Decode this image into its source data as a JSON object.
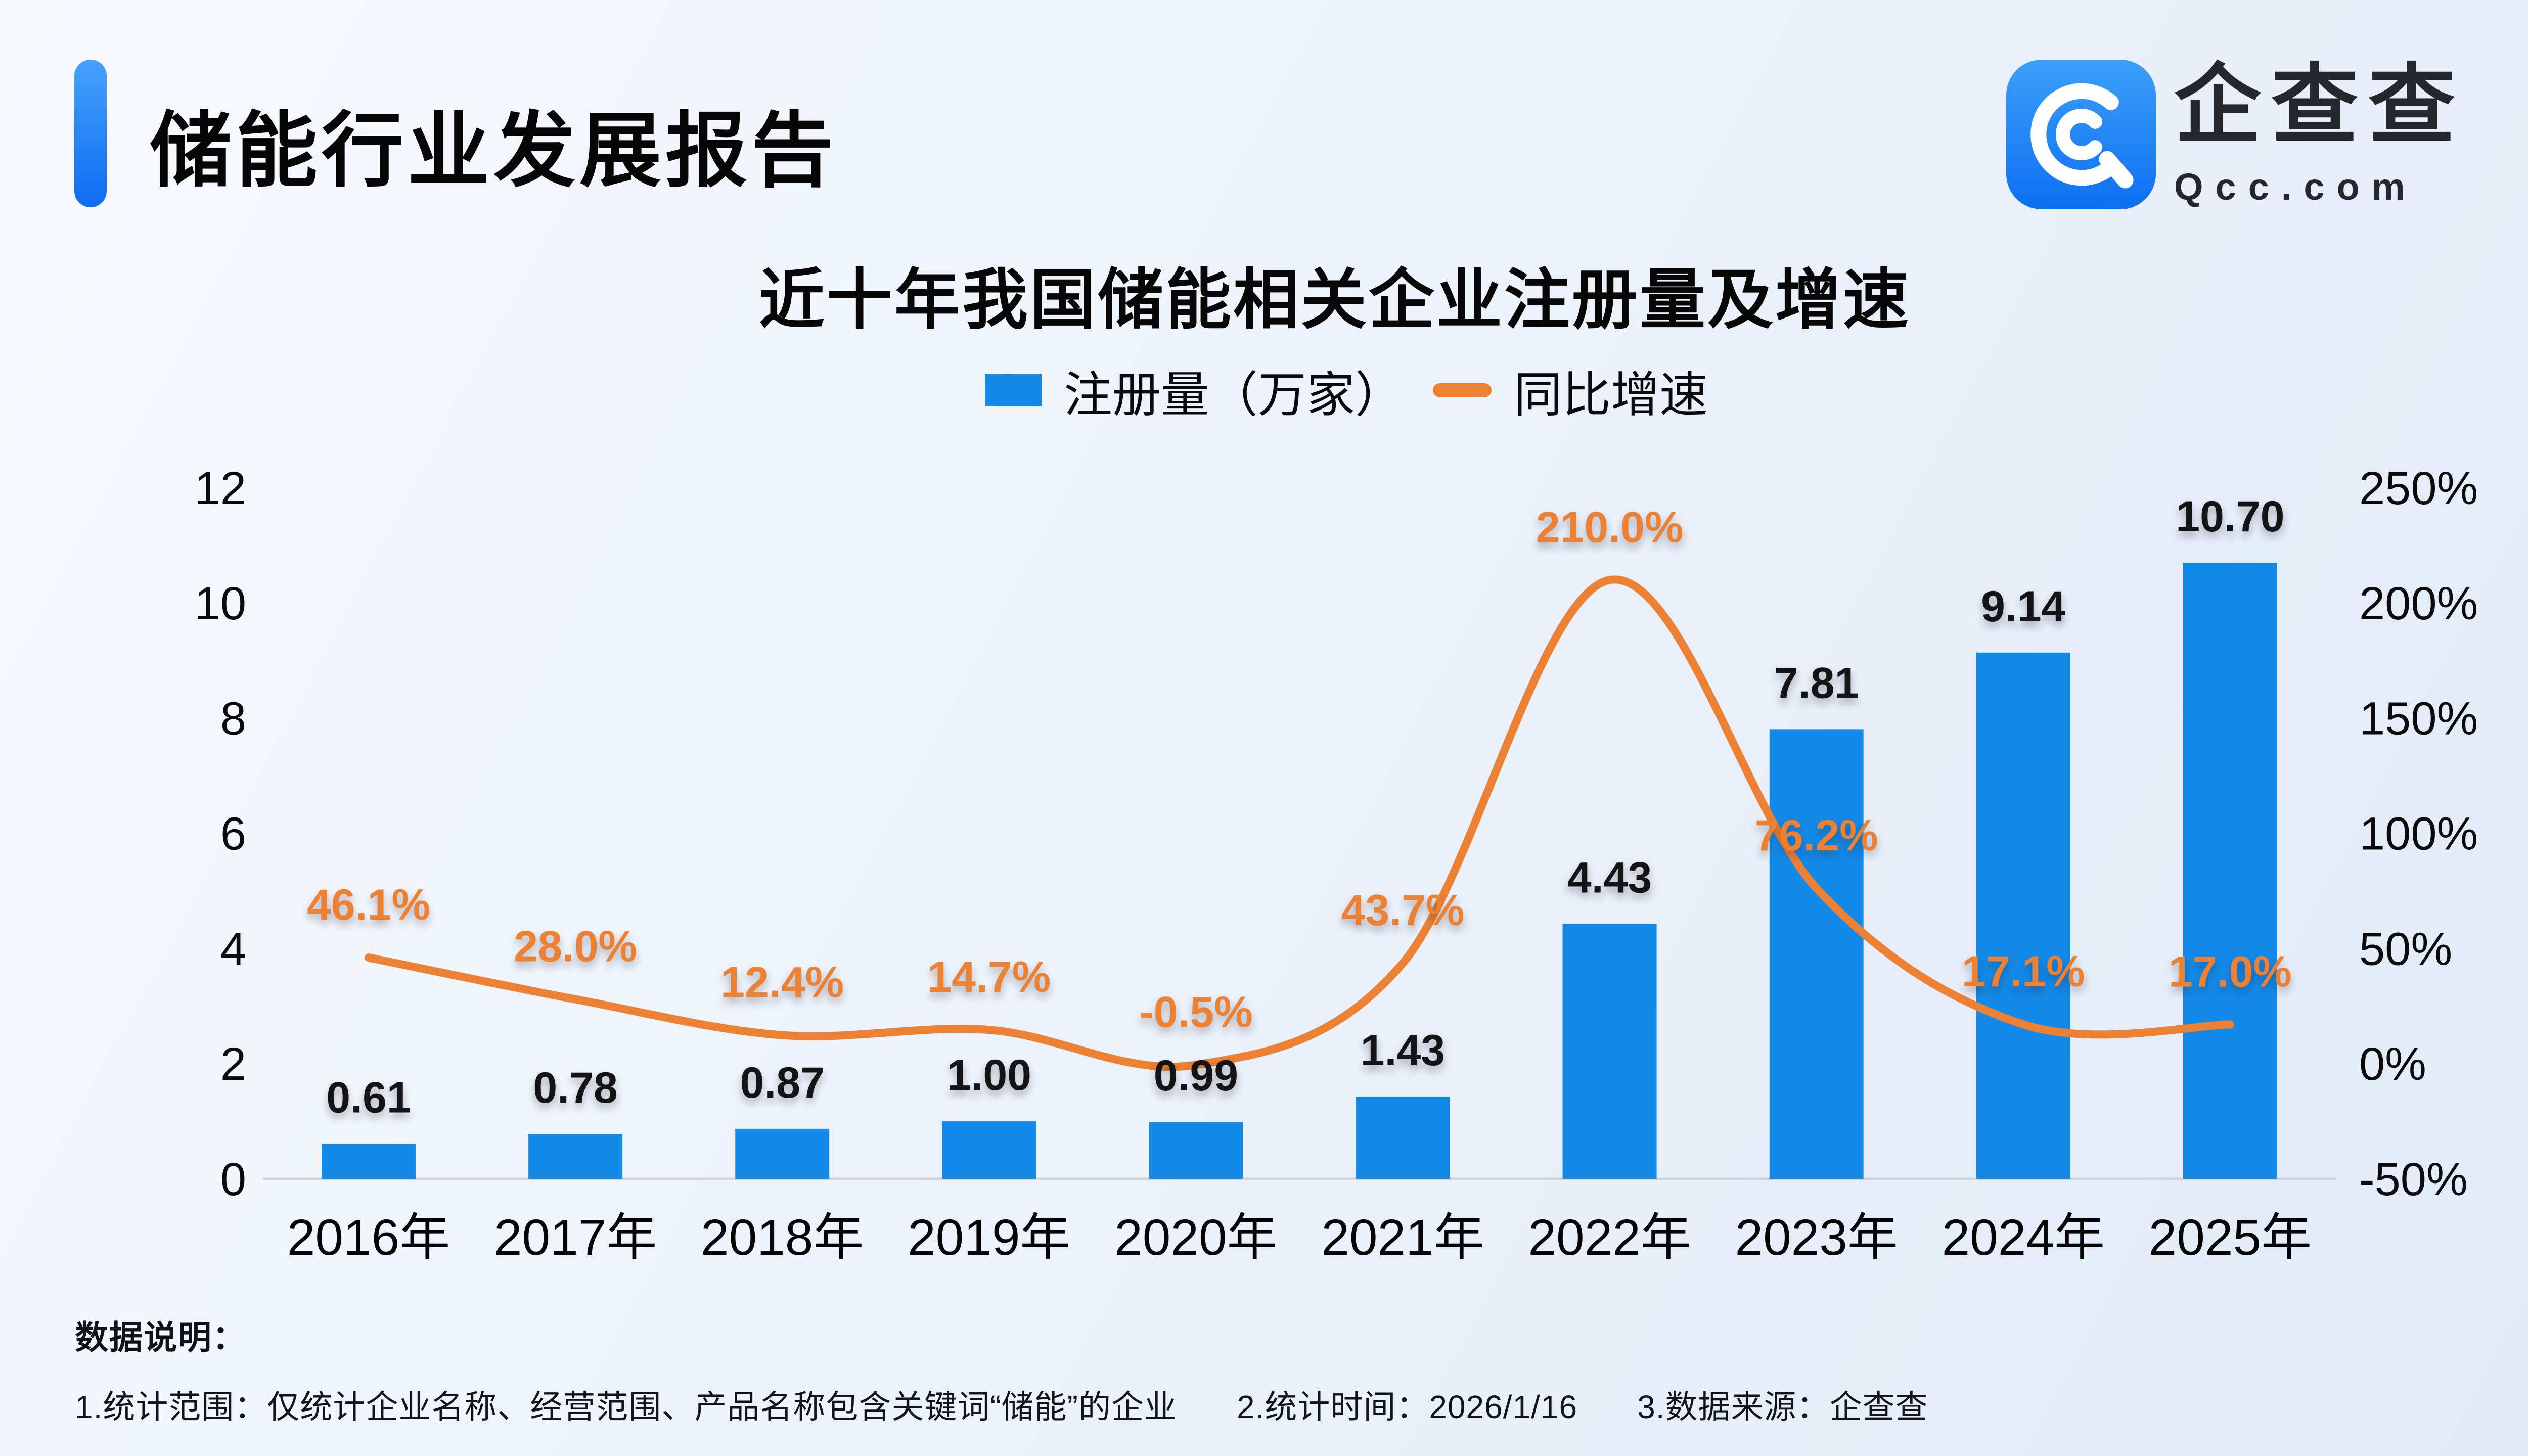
{
  "header": {
    "title": "储能行业发展报告"
  },
  "logo": {
    "brand": "企查查",
    "domain": "Qcc.com"
  },
  "chart": {
    "title": "近十年我国储能相关企业注册量及增速"
  },
  "chart_data": {
    "type": "bar+line",
    "title": "近十年我国储能相关企业注册量及增速",
    "categories": [
      "2016年",
      "2017年",
      "2018年",
      "2019年",
      "2020年",
      "2021年",
      "2022年",
      "2023年",
      "2024年",
      "2025年"
    ],
    "series": [
      {
        "name": "注册量（万家）",
        "type": "bar",
        "axis": "left",
        "color": "#148AE8",
        "values": [
          0.61,
          0.78,
          0.87,
          1.0,
          0.99,
          1.43,
          4.43,
          7.81,
          9.14,
          10.7
        ],
        "labels": [
          "0.61",
          "0.78",
          "0.87",
          "1.00",
          "0.99",
          "1.43",
          "4.43",
          "7.81",
          "9.14",
          "10.70"
        ]
      },
      {
        "name": "同比增速",
        "type": "line",
        "axis": "right",
        "color": "#EC8033",
        "values": [
          46.1,
          28.0,
          12.4,
          14.7,
          -0.5,
          43.7,
          210.0,
          76.2,
          17.1,
          17.0
        ],
        "labels": [
          "46.1%",
          "28.0%",
          "12.4%",
          "14.7%",
          "-0.5%",
          "43.7%",
          "210.0%",
          "76.2%",
          "17.1%",
          "17.0%"
        ]
      }
    ],
    "left_axis": {
      "range": [
        0,
        12
      ],
      "ticks": [
        {
          "value": 0,
          "label": "0"
        },
        {
          "value": 2,
          "label": "2"
        },
        {
          "value": 4,
          "label": "4"
        },
        {
          "value": 6,
          "label": "6"
        },
        {
          "value": 8,
          "label": "8"
        },
        {
          "value": 10,
          "label": "10"
        },
        {
          "value": 12,
          "label": "12"
        }
      ]
    },
    "right_axis": {
      "range": [
        -50,
        250
      ],
      "ticks": [
        {
          "value": -50,
          "label": "-50%"
        },
        {
          "value": 0,
          "label": "0%"
        },
        {
          "value": 50,
          "label": "50%"
        },
        {
          "value": 100,
          "label": "100%"
        },
        {
          "value": 150,
          "label": "150%"
        },
        {
          "value": 200,
          "label": "200%"
        },
        {
          "value": 250,
          "label": "250%"
        }
      ]
    },
    "grid": false,
    "legend_position": "top-center"
  },
  "notes": {
    "heading": "数据说明：",
    "items": [
      "1.统计范围：仅统计企业名称、经营范围、产品名称包含关键词“储能”的企业",
      "2.统计时间：2026/1/16",
      "3.数据来源：企查查"
    ]
  },
  "colors": {
    "bar": "#148AE8",
    "line": "#EC8033",
    "accent": "#1677F6",
    "axis_line": "#d2d4d9",
    "value_text": "#141416",
    "tick_text": "#0b0b0d"
  }
}
